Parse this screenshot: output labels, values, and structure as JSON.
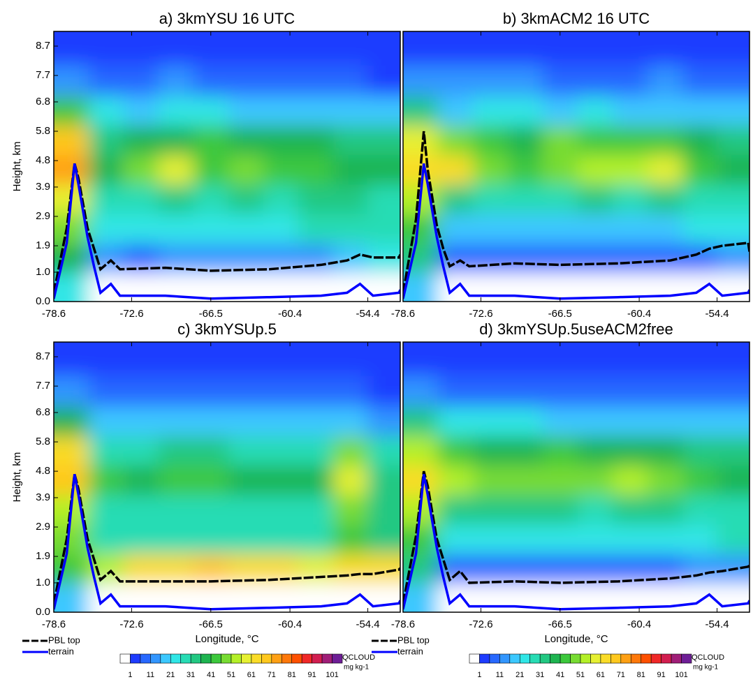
{
  "chart_data": [
    {
      "type": "contour",
      "title": "a) 3kmYSU 16 UTC",
      "ylabel": "Height, km",
      "xlim": [
        -78.6,
        -51.9
      ],
      "xticks": [
        -78.6,
        -72.6,
        -66.5,
        -60.4,
        -54.4
      ],
      "ylim": [
        0,
        9.2
      ],
      "yticks": [
        {
          "value": 0,
          "label": "0.0"
        },
        {
          "value": 1,
          "label": "1.0"
        },
        1.9,
        2.9,
        3.9,
        4.8,
        5.8,
        6.8,
        7.7,
        8.7
      ],
      "field": {
        "x": [
          -77.3,
          -74.6,
          -71.9,
          -69.2,
          -66.5,
          -63.8,
          -61.1,
          -58.4,
          -55.7,
          -53.2
        ],
        "y": [
          0.5,
          1.5,
          2.5,
          3.5,
          4.5,
          5.5,
          6.5,
          7.5,
          8.6
        ],
        "z": [
          [
            25,
            0,
            0,
            0,
            0,
            0,
            0,
            0,
            0,
            0
          ],
          [
            40,
            15,
            10,
            12,
            12,
            12,
            12,
            14,
            18,
            22
          ],
          [
            50,
            22,
            22,
            24,
            24,
            24,
            25,
            26,
            28,
            30
          ],
          [
            60,
            28,
            30,
            32,
            30,
            32,
            30,
            32,
            33,
            30
          ],
          [
            75,
            40,
            50,
            60,
            45,
            50,
            42,
            44,
            40,
            38
          ],
          [
            70,
            35,
            38,
            40,
            42,
            38,
            38,
            36,
            35,
            32
          ],
          [
            45,
            22,
            20,
            22,
            22,
            20,
            20,
            18,
            18,
            16
          ],
          [
            12,
            8,
            10,
            12,
            8,
            10,
            8,
            8,
            6,
            5
          ],
          [
            3,
            2,
            4,
            5,
            2,
            4,
            3,
            2,
            2,
            1
          ]
        ]
      },
      "x": [
        -78.6,
        -77.6,
        -77.0,
        -76.7,
        -76.0,
        -75.5,
        -75.0,
        -74.2,
        -73.5,
        -70,
        -66.5,
        -62,
        -58,
        -56,
        -55,
        -54,
        -52,
        -51.9
      ],
      "series": [
        {
          "name": "PBL top",
          "color": "#000000",
          "values": [
            0.3,
            2.5,
            4.7,
            4.2,
            2.5,
            1.8,
            1.1,
            1.4,
            1.1,
            1.15,
            1.05,
            1.1,
            1.25,
            1.4,
            1.6,
            1.5,
            1.5,
            1.6
          ]
        },
        {
          "name": "terrain",
          "color": "#0000ff",
          "values": [
            0.1,
            2.0,
            4.7,
            4.0,
            2.2,
            1.2,
            0.3,
            0.6,
            0.2,
            0.2,
            0.1,
            0.15,
            0.2,
            0.3,
            0.6,
            0.2,
            0.3,
            0.4
          ]
        }
      ]
    },
    {
      "type": "contour",
      "title": "b) 3kmACM2 16 UTC",
      "xlim": [
        -78.6,
        -51.9
      ],
      "xticks": [
        -78.6,
        -72.6,
        -66.5,
        -60.4,
        -54.4
      ],
      "ylim": [
        0,
        9.2
      ],
      "field": {
        "x": [
          -77.3,
          -74.6,
          -71.9,
          -69.2,
          -66.5,
          -63.8,
          -61.1,
          -58.4,
          -55.7,
          -53.2
        ],
        "y": [
          0.5,
          1.5,
          2.5,
          3.5,
          4.5,
          5.5,
          6.5,
          7.5,
          8.6
        ],
        "z": [
          [
            20,
            0,
            0,
            0,
            0,
            0,
            0,
            0,
            0,
            0
          ],
          [
            35,
            10,
            8,
            8,
            8,
            8,
            8,
            8,
            10,
            12
          ],
          [
            45,
            20,
            18,
            18,
            18,
            18,
            18,
            20,
            22,
            24
          ],
          [
            55,
            35,
            30,
            30,
            30,
            32,
            30,
            32,
            30,
            28
          ],
          [
            65,
            62,
            50,
            45,
            50,
            52,
            55,
            60,
            45,
            40
          ],
          [
            60,
            50,
            42,
            40,
            48,
            45,
            45,
            42,
            38,
            35
          ],
          [
            35,
            20,
            22,
            22,
            20,
            22,
            20,
            20,
            18,
            18
          ],
          [
            12,
            12,
            12,
            12,
            10,
            10,
            10,
            12,
            10,
            8
          ],
          [
            4,
            4,
            4,
            3,
            3,
            3,
            3,
            4,
            3,
            2
          ]
        ]
      },
      "x": [
        -78.6,
        -77.6,
        -77.0,
        -76.7,
        -76.0,
        -75.5,
        -75.0,
        -74.2,
        -73.5,
        -70,
        -66.5,
        -62,
        -58,
        -56,
        -55,
        -54,
        -52,
        -51.9
      ],
      "series": [
        {
          "name": "PBL top",
          "color": "#000000",
          "values": [
            0.3,
            2.8,
            5.8,
            4.5,
            2.6,
            1.8,
            1.2,
            1.4,
            1.2,
            1.3,
            1.25,
            1.3,
            1.4,
            1.6,
            1.8,
            1.9,
            2.0,
            1.7
          ]
        },
        {
          "name": "terrain",
          "color": "#0000ff",
          "values": [
            0.1,
            2.0,
            4.7,
            4.0,
            2.2,
            1.2,
            0.3,
            0.6,
            0.2,
            0.2,
            0.1,
            0.15,
            0.2,
            0.3,
            0.6,
            0.2,
            0.3,
            0.4
          ]
        }
      ]
    },
    {
      "type": "contour",
      "title": "c) 3kmYSUp.5",
      "xlabel": "Longitude, °C",
      "ylabel": "Height, km",
      "xlim": [
        -78.6,
        -51.9
      ],
      "xticks": [
        -78.6,
        -72.6,
        -66.5,
        -60.4,
        -54.4
      ],
      "ylim": [
        0,
        9.2
      ],
      "yticks": [
        {
          "value": 0,
          "label": "0.0"
        },
        {
          "value": 1,
          "label": "1.0"
        },
        1.9,
        2.9,
        3.9,
        4.8,
        5.8,
        6.8,
        7.7,
        8.7
      ],
      "field": {
        "x": [
          -77.3,
          -74.6,
          -71.9,
          -69.2,
          -66.5,
          -63.8,
          -61.1,
          -58.4,
          -55.7,
          -53.2
        ],
        "y": [
          0.5,
          1.5,
          2.5,
          3.5,
          4.5,
          5.5,
          6.5,
          7.5,
          8.6
        ],
        "z": [
          [
            20,
            0,
            0,
            0,
            0,
            0,
            0,
            0,
            0,
            0
          ],
          [
            45,
            55,
            65,
            65,
            70,
            65,
            65,
            60,
            62,
            65
          ],
          [
            50,
            28,
            28,
            28,
            28,
            28,
            30,
            30,
            45,
            35
          ],
          [
            55,
            30,
            30,
            30,
            30,
            30,
            30,
            30,
            48,
            32
          ],
          [
            70,
            45,
            40,
            42,
            45,
            40,
            40,
            40,
            60,
            35
          ],
          [
            65,
            30,
            30,
            32,
            35,
            30,
            30,
            30,
            50,
            28
          ],
          [
            40,
            18,
            18,
            18,
            18,
            16,
            16,
            16,
            20,
            14
          ],
          [
            12,
            8,
            8,
            8,
            8,
            8,
            6,
            6,
            6,
            5
          ],
          [
            3,
            3,
            3,
            2,
            2,
            2,
            2,
            2,
            2,
            1
          ]
        ]
      },
      "x": [
        -78.6,
        -77.6,
        -77.0,
        -76.7,
        -76.0,
        -75.5,
        -75.0,
        -74.2,
        -73.5,
        -70,
        -66.5,
        -62,
        -58,
        -56,
        -55,
        -54,
        -52,
        -51.9
      ],
      "series": [
        {
          "name": "PBL top",
          "color": "#000000",
          "values": [
            0.3,
            2.5,
            4.7,
            4.2,
            2.5,
            1.8,
            1.1,
            1.4,
            1.05,
            1.05,
            1.05,
            1.1,
            1.2,
            1.25,
            1.3,
            1.3,
            1.45,
            1.5
          ]
        },
        {
          "name": "terrain",
          "color": "#0000ff",
          "values": [
            0.1,
            2.0,
            4.7,
            4.0,
            2.2,
            1.2,
            0.3,
            0.6,
            0.2,
            0.2,
            0.1,
            0.15,
            0.2,
            0.3,
            0.6,
            0.2,
            0.3,
            0.4
          ]
        }
      ],
      "legend": "below",
      "colorbar": {
        "label": "QCLOUD",
        "units": "mg kg-1",
        "levels": [
          1,
          6,
          11,
          16,
          21,
          26,
          31,
          36,
          41,
          46,
          51,
          56,
          61,
          66,
          71,
          76,
          81,
          86,
          91,
          96,
          101
        ],
        "colors": [
          "#ffffff",
          "#1e3cff",
          "#2868ff",
          "#3296ff",
          "#3cc8ff",
          "#30e6e6",
          "#28dcb4",
          "#22c882",
          "#1eb450",
          "#3cc83c",
          "#78dc32",
          "#b4f028",
          "#e6f032",
          "#fadc28",
          "#ffc81e",
          "#ffa014",
          "#ff780a",
          "#ff5000",
          "#f02828",
          "#d21e50",
          "#a01e78",
          "#6e1e96"
        ],
        "ticks": [
          1,
          11,
          21,
          31,
          41,
          51,
          61,
          71,
          81,
          91,
          101
        ]
      }
    },
    {
      "type": "contour",
      "title": "d) 3kmYSUp.5useACM2free",
      "xlabel": "Longitude, °C",
      "xlim": [
        -78.6,
        -51.9
      ],
      "xticks": [
        -78.6,
        -72.6,
        -66.5,
        -60.4,
        -54.4
      ],
      "ylim": [
        0,
        9.2
      ],
      "field": {
        "x": [
          -77.3,
          -74.6,
          -71.9,
          -69.2,
          -66.5,
          -63.8,
          -61.1,
          -58.4,
          -55.7,
          -53.2
        ],
        "y": [
          0.5,
          1.5,
          2.5,
          3.5,
          4.5,
          5.5,
          6.5,
          7.5,
          8.6
        ],
        "z": [
          [
            20,
            0,
            0,
            0,
            0,
            0,
            0,
            0,
            0,
            0
          ],
          [
            35,
            10,
            10,
            10,
            10,
            10,
            10,
            10,
            12,
            12
          ],
          [
            45,
            22,
            22,
            24,
            22,
            22,
            24,
            24,
            24,
            26
          ],
          [
            55,
            35,
            32,
            32,
            32,
            30,
            32,
            32,
            30,
            28
          ],
          [
            62,
            55,
            50,
            48,
            50,
            48,
            52,
            50,
            42,
            40
          ],
          [
            55,
            45,
            40,
            40,
            42,
            40,
            40,
            38,
            35,
            32
          ],
          [
            35,
            22,
            22,
            22,
            20,
            20,
            20,
            20,
            18,
            18
          ],
          [
            12,
            10,
            10,
            10,
            10,
            10,
            8,
            8,
            8,
            8
          ],
          [
            4,
            3,
            3,
            3,
            3,
            3,
            3,
            3,
            2,
            2
          ]
        ]
      },
      "x": [
        -78.6,
        -77.6,
        -77.0,
        -76.7,
        -76.0,
        -75.5,
        -75.0,
        -74.2,
        -73.5,
        -70,
        -66.5,
        -62,
        -58,
        -56,
        -55,
        -54,
        -52,
        -51.9
      ],
      "series": [
        {
          "name": "PBL top",
          "color": "#000000",
          "values": [
            0.3,
            2.6,
            4.8,
            4.3,
            2.5,
            1.8,
            1.1,
            1.4,
            1.0,
            1.05,
            1.0,
            1.05,
            1.15,
            1.25,
            1.35,
            1.4,
            1.55,
            1.6
          ]
        },
        {
          "name": "terrain",
          "color": "#0000ff",
          "values": [
            0.1,
            2.0,
            4.7,
            4.0,
            2.2,
            1.2,
            0.3,
            0.6,
            0.2,
            0.2,
            0.1,
            0.15,
            0.2,
            0.3,
            0.6,
            0.2,
            0.3,
            0.4
          ]
        }
      ],
      "legend": "below",
      "colorbar": {
        "label": "QCLOUD",
        "units": "mg kg-1",
        "levels": [
          1,
          6,
          11,
          16,
          21,
          26,
          31,
          36,
          41,
          46,
          51,
          56,
          61,
          66,
          71,
          76,
          81,
          86,
          91,
          96,
          101
        ],
        "colors": [
          "#ffffff",
          "#1e3cff",
          "#2868ff",
          "#3296ff",
          "#3cc8ff",
          "#30e6e6",
          "#28dcb4",
          "#22c882",
          "#1eb450",
          "#3cc83c",
          "#78dc32",
          "#b4f028",
          "#e6f032",
          "#fadc28",
          "#ffc81e",
          "#ffa014",
          "#ff780a",
          "#ff5000",
          "#f02828",
          "#d21e50",
          "#a01e78",
          "#6e1e96"
        ],
        "ticks": [
          1,
          11,
          21,
          31,
          41,
          51,
          61,
          71,
          81,
          91,
          101
        ]
      }
    }
  ]
}
